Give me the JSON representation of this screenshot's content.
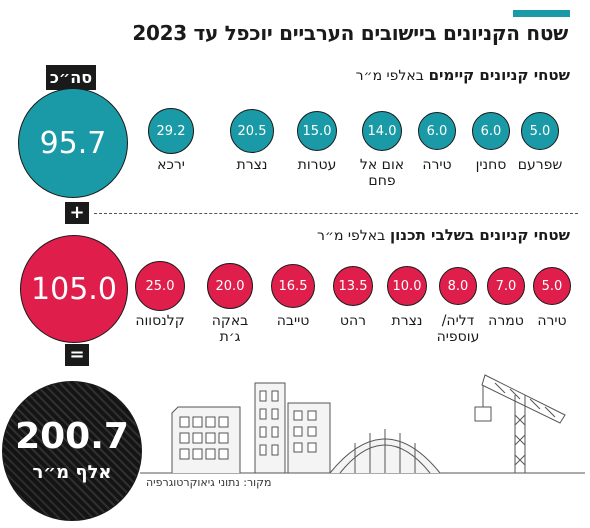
{
  "title": "שטח הקניונים ביישובים הערביים יוכפל עד 2023",
  "existing": {
    "heading": "שטחי קניונים קיימים",
    "unit": "באלפי מ״ר",
    "total_tag": "סה״כ",
    "total": "95.7",
    "items": [
      {
        "name": "שפרעם",
        "value": "5.0"
      },
      {
        "name": "סחנין",
        "value": "6.0"
      },
      {
        "name": "טירה",
        "value": "6.0"
      },
      {
        "name": "אום אל",
        "name2": "פחם",
        "value": "14.0"
      },
      {
        "name": "עטרות",
        "value": "15.0"
      },
      {
        "name": "נצרת",
        "value": "20.5"
      },
      {
        "name": "ירכא",
        "value": "29.2"
      }
    ]
  },
  "plus": "+",
  "planned": {
    "heading": "שטחי קניונים בשלבי תכנון",
    "unit": "באלפי מ״ר",
    "total": "105.0",
    "items": [
      {
        "name": "טירה",
        "value": "5.0"
      },
      {
        "name": "טמרה",
        "value": "7.0"
      },
      {
        "name": "דליה/",
        "name2": "עוספיה",
        "value": "8.0"
      },
      {
        "name": "נצרת",
        "value": "10.0"
      },
      {
        "name": "רהט",
        "value": "13.5"
      },
      {
        "name": "טייבה",
        "value": "16.5"
      },
      {
        "name": "באקה",
        "name2": "ג׳ת",
        "value": "20.0"
      },
      {
        "name": "קלנסווה",
        "value": "25.0"
      }
    ]
  },
  "equals": "=",
  "grand_total": {
    "value": "200.7",
    "unit": "אלף מ״ר"
  },
  "source": "מקור: נתוני גיאוקרטוגרפיה",
  "colors": {
    "existing": "#1a9aa6",
    "planned": "#e01e4b",
    "total": "#1a1a1a"
  },
  "chart_data": [
    {
      "type": "bubble",
      "title": "שטחי קניונים קיימים",
      "unit": "באלפי מ״ר",
      "categories": [
        "שפרעם",
        "סחנין",
        "טירה",
        "אום אל פחם",
        "עטרות",
        "נצרת",
        "ירכא"
      ],
      "values": [
        5.0,
        6.0,
        6.0,
        14.0,
        15.0,
        20.5,
        29.2
      ],
      "total": 95.7
    },
    {
      "type": "bubble",
      "title": "שטחי קניונים בשלבי תכנון",
      "unit": "באלפי מ״ר",
      "categories": [
        "טירה",
        "טמרה",
        "דליה/עוספיה",
        "נצרת",
        "רהט",
        "טייבה",
        "באקה ג׳ת",
        "קלנסווה"
      ],
      "values": [
        5.0,
        7.0,
        8.0,
        10.0,
        13.5,
        16.5,
        20.0,
        25.0
      ],
      "total": 105.0
    }
  ]
}
